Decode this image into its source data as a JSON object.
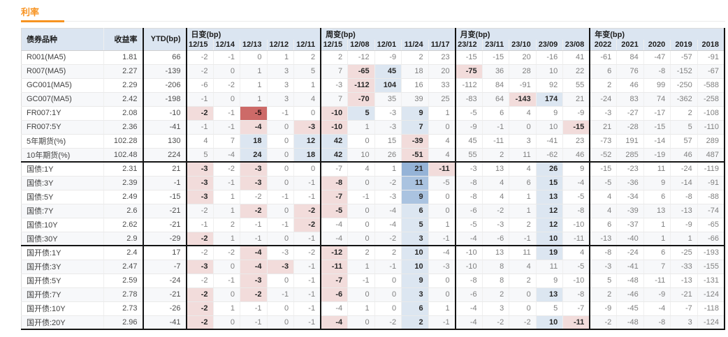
{
  "title": "利率",
  "colors": {
    "accent": "#f79321",
    "header_bg": "#dbe5f1",
    "stripe": "#f7f8fa",
    "pink": "#f2dcdb",
    "dark_red": "#cd6a68",
    "blue_light": "#dce6f1",
    "blue_mid": "#aac3e0",
    "blue_dark": "#95b3d7",
    "section_border": "#141414"
  },
  "table": {
    "col1_header": "债券品种",
    "col2_header": "收益率",
    "col3_header": "YTD(bp)",
    "groups": [
      {
        "label": "日变(bp)",
        "cols": [
          "12/15",
          "12/14",
          "12/13",
          "12/12",
          "12/11"
        ]
      },
      {
        "label": "周变(bp)",
        "cols": [
          "12/15",
          "12/08",
          "12/01",
          "11/24",
          "11/17"
        ]
      },
      {
        "label": "月变(bp)",
        "cols": [
          "23/12",
          "23/11",
          "23/10",
          "23/09",
          "23/08"
        ]
      },
      {
        "label": "年变(bp)",
        "cols": [
          "2022",
          "2021",
          "2020",
          "2019",
          "2018"
        ]
      }
    ],
    "sections": [
      {
        "rows": [
          {
            "name": "R001(MA5)",
            "yield": "1.81",
            "ytd": "66",
            "d": [
              "-2",
              "-1",
              "0",
              "1",
              "2"
            ],
            "w": [
              "2",
              "-12",
              "-9",
              "2",
              "23"
            ],
            "m": [
              "-15",
              "-15",
              "20",
              "-16",
              "41"
            ],
            "y": [
              "-61",
              "84",
              "-47",
              "-57",
              "-91"
            ],
            "hl": {}
          },
          {
            "name": "R007(MA5)",
            "yield": "2.27",
            "ytd": "-139",
            "d": [
              "-2",
              "0",
              "1",
              "3",
              "5"
            ],
            "w": [
              "7",
              "-65",
              "45",
              "18",
              "20"
            ],
            "m": [
              "-75",
              "36",
              "28",
              "10",
              "22"
            ],
            "y": [
              "6",
              "76",
              "-8",
              "-152",
              "-67"
            ],
            "hl": {
              "w1": "p",
              "w2": "b1",
              "m0": "p"
            }
          },
          {
            "name": "GC001(MA5)",
            "yield": "2.29",
            "ytd": "-206",
            "d": [
              "-6",
              "-2",
              "1",
              "3",
              "1"
            ],
            "w": [
              "-3",
              "-112",
              "104",
              "16",
              "33"
            ],
            "m": [
              "-112",
              "84",
              "-91",
              "92",
              "55"
            ],
            "y": [
              "2",
              "46",
              "99",
              "-250",
              "-588"
            ],
            "hl": {
              "w1": "p",
              "w2": "b1"
            }
          },
          {
            "name": "GC007(MA5)",
            "yield": "2.42",
            "ytd": "-198",
            "d": [
              "-1",
              "0",
              "1",
              "3",
              "4"
            ],
            "w": [
              "7",
              "-70",
              "35",
              "39",
              "25"
            ],
            "m": [
              "-83",
              "64",
              "-143",
              "174",
              "21"
            ],
            "y": [
              "-24",
              "83",
              "74",
              "-362",
              "-258"
            ],
            "hl": {
              "w1": "p",
              "m2": "p",
              "m3": "b1"
            }
          },
          {
            "name": "FR007:1Y",
            "yield": "2.08",
            "ytd": "-10",
            "d": [
              "-2",
              "-1",
              "-5",
              "-1",
              "0"
            ],
            "w": [
              "-10",
              "5",
              "-3",
              "9",
              "1"
            ],
            "m": [
              "-5",
              "6",
              "4",
              "9",
              "-9"
            ],
            "y": [
              "-3",
              "-27",
              "-17",
              "2",
              "-108"
            ],
            "hl": {
              "d0": "p",
              "d2": "r",
              "w0": "p",
              "w1": "b1",
              "w3": "b1"
            }
          },
          {
            "name": "FR007:5Y",
            "yield": "2.36",
            "ytd": "-41",
            "d": [
              "-1",
              "-1",
              "-4",
              "0",
              "-3"
            ],
            "w": [
              "-10",
              "1",
              "-3",
              "7",
              "0"
            ],
            "m": [
              "-9",
              "-1",
              "0",
              "10",
              "-15"
            ],
            "y": [
              "21",
              "-28",
              "-15",
              "5",
              "-110"
            ],
            "hl": {
              "d2": "p",
              "d4": "p",
              "w0": "p",
              "w3": "b1",
              "m4": "p"
            }
          },
          {
            "name": "5年期货(%)",
            "yield": "102.28",
            "ytd": "130",
            "d": [
              "4",
              "7",
              "18",
              "0",
              "12"
            ],
            "w": [
              "42",
              "0",
              "15",
              "-39",
              "4"
            ],
            "m": [
              "45",
              "-11",
              "3",
              "-41",
              "23"
            ],
            "y": [
              "-73",
              "191",
              "-14",
              "57",
              "289"
            ],
            "hl": {
              "d2": "b1",
              "d4": "b1",
              "w0": "b1",
              "w3": "p"
            }
          },
          {
            "name": "10年期货(%)",
            "yield": "102.48",
            "ytd": "224",
            "d": [
              "5",
              "-4",
              "24",
              "0",
              "18"
            ],
            "w": [
              "42",
              "10",
              "26",
              "-51",
              "4"
            ],
            "m": [
              "55",
              "2",
              "11",
              "-62",
              "46"
            ],
            "y": [
              "-52",
              "285",
              "-19",
              "46",
              "487"
            ],
            "hl": {
              "d2": "b1",
              "d4": "b1",
              "w0": "b1",
              "w3": "p"
            }
          }
        ]
      },
      {
        "rows": [
          {
            "name": "国债:1Y",
            "yield": "2.31",
            "ytd": "21",
            "d": [
              "-3",
              "-2",
              "-3",
              "0",
              "0"
            ],
            "w": [
              "-7",
              "4",
              "1",
              "21",
              "-11"
            ],
            "m": [
              "-3",
              "13",
              "4",
              "26",
              "9"
            ],
            "y": [
              "-15",
              "-23",
              "11",
              "-24",
              "-119"
            ],
            "hl": {
              "d0": "p",
              "d2": "p",
              "w3": "b3",
              "w4": "p",
              "m3": "b1"
            }
          },
          {
            "name": "国债:3Y",
            "yield": "2.39",
            "ytd": "-1",
            "d": [
              "-3",
              "-1",
              "-3",
              "0",
              "-1"
            ],
            "w": [
              "-8",
              "0",
              "-2",
              "11",
              "-5"
            ],
            "m": [
              "-8",
              "4",
              "6",
              "15",
              "-4"
            ],
            "y": [
              "-5",
              "-36",
              "9",
              "-14",
              "-91"
            ],
            "hl": {
              "d0": "p",
              "d2": "p",
              "w0": "p",
              "w3": "b2",
              "m3": "b1"
            }
          },
          {
            "name": "国债:5Y",
            "yield": "2.49",
            "ytd": "-15",
            "d": [
              "-3",
              "1",
              "-2",
              "-1",
              "-1"
            ],
            "w": [
              "-7",
              "-1",
              "-3",
              "9",
              "0"
            ],
            "m": [
              "-8",
              "4",
              "1",
              "13",
              "-5"
            ],
            "y": [
              "4",
              "-34",
              "6",
              "-8",
              "-88"
            ],
            "hl": {
              "d0": "p",
              "w0": "p",
              "w3": "b2",
              "m3": "b1"
            }
          },
          {
            "name": "国债:7Y",
            "yield": "2.6",
            "ytd": "-21",
            "d": [
              "-2",
              "1",
              "-2",
              "0",
              "-2"
            ],
            "w": [
              "-5",
              "0",
              "-4",
              "6",
              "0"
            ],
            "m": [
              "-6",
              "-2",
              "1",
              "12",
              "-8"
            ],
            "y": [
              "4",
              "-39",
              "13",
              "-13",
              "-74"
            ],
            "hl": {
              "d2": "p",
              "d4": "p",
              "w0": "p",
              "w3": "b1",
              "m3": "b1"
            }
          },
          {
            "name": "国债:10Y",
            "yield": "2.62",
            "ytd": "-21",
            "d": [
              "-1",
              "2",
              "-1",
              "-1",
              "-2"
            ],
            "w": [
              "-4",
              "0",
              "-4",
              "5",
              "1"
            ],
            "m": [
              "-5",
              "-3",
              "2",
              "12",
              "-10"
            ],
            "y": [
              "6",
              "-37",
              "1",
              "-9",
              "-65"
            ],
            "hl": {
              "d4": "p",
              "w3": "b1",
              "m3": "b1"
            }
          },
          {
            "name": "国债:30Y",
            "yield": "2.9",
            "ytd": "-29",
            "d": [
              "-2",
              "1",
              "-1",
              "0",
              "-1"
            ],
            "w": [
              "-4",
              "0",
              "-2",
              "3",
              "-1"
            ],
            "m": [
              "-4",
              "-6",
              "-1",
              "10",
              "-11"
            ],
            "y": [
              "-13",
              "-40",
              "1",
              "1",
              "-66"
            ],
            "hl": {
              "d0": "p",
              "w3": "b1",
              "m3": "b1"
            }
          }
        ]
      },
      {
        "rows": [
          {
            "name": "国开债:1Y",
            "yield": "2.4",
            "ytd": "17",
            "d": [
              "-2",
              "-2",
              "-4",
              "-3",
              "-2"
            ],
            "w": [
              "-12",
              "2",
              "2",
              "10",
              "-4"
            ],
            "m": [
              "-10",
              "13",
              "11",
              "19",
              "4"
            ],
            "y": [
              "-8",
              "-24",
              "6",
              "-25",
              "-193"
            ],
            "hl": {
              "d2": "p",
              "w0": "p",
              "w3": "b1",
              "m3": "b1"
            }
          },
          {
            "name": "国开债:3Y",
            "yield": "2.47",
            "ytd": "-7",
            "d": [
              "-3",
              "0",
              "-4",
              "-3",
              "-1"
            ],
            "w": [
              "-11",
              "1",
              "-1",
              "10",
              "-3"
            ],
            "m": [
              "-10",
              "8",
              "4",
              "11",
              "-5"
            ],
            "y": [
              "-3",
              "-41",
              "7",
              "-33",
              "-155"
            ],
            "hl": {
              "d0": "p",
              "d2": "p",
              "d3": "p",
              "w0": "p",
              "w3": "b1"
            }
          },
          {
            "name": "国开债:5Y",
            "yield": "2.59",
            "ytd": "-24",
            "d": [
              "-2",
              "-1",
              "-3",
              "0",
              "-1"
            ],
            "w": [
              "-7",
              "-1",
              "0",
              "9",
              "0"
            ],
            "m": [
              "-8",
              "8",
              "2",
              "9",
              "-10"
            ],
            "y": [
              "5",
              "-48",
              "-11",
              "-13",
              "-131"
            ],
            "hl": {
              "d2": "p",
              "w0": "p",
              "w3": "b1"
            }
          },
          {
            "name": "国开债:7Y",
            "yield": "2.78",
            "ytd": "-21",
            "d": [
              "-2",
              "0",
              "-2",
              "-1",
              "-1"
            ],
            "w": [
              "-6",
              "0",
              "0",
              "3",
              "0"
            ],
            "m": [
              "-6",
              "2",
              "0",
              "13",
              "-8"
            ],
            "y": [
              "2",
              "-46",
              "-9",
              "-21",
              "-124"
            ],
            "hl": {
              "d0": "p",
              "d2": "p",
              "w0": "p",
              "w3": "b1",
              "m3": "b1"
            }
          },
          {
            "name": "国开债:10Y",
            "yield": "2.73",
            "ytd": "-26",
            "d": [
              "-2",
              "1",
              "-1",
              "0",
              "-1"
            ],
            "w": [
              "-4",
              "1",
              "0",
              "6",
              "1"
            ],
            "m": [
              "-4",
              "3",
              "0",
              "5",
              "-7"
            ],
            "y": [
              "-9",
              "-45",
              "-4",
              "-7",
              "-118"
            ],
            "hl": {
              "d0": "p",
              "w3": "b1"
            }
          },
          {
            "name": "国开债:20Y",
            "yield": "2.96",
            "ytd": "-41",
            "d": [
              "-2",
              "0",
              "-1",
              "0",
              "-1"
            ],
            "w": [
              "-4",
              "0",
              "-2",
              "2",
              "-1"
            ],
            "m": [
              "-4",
              "-2",
              "-2",
              "10",
              "-11"
            ],
            "y": [
              "-2",
              "-48",
              "-8",
              "3",
              "-124"
            ],
            "hl": {
              "d0": "p",
              "w0": "p",
              "w3": "b1",
              "m3": "b1",
              "m4": "p"
            }
          }
        ]
      }
    ]
  }
}
